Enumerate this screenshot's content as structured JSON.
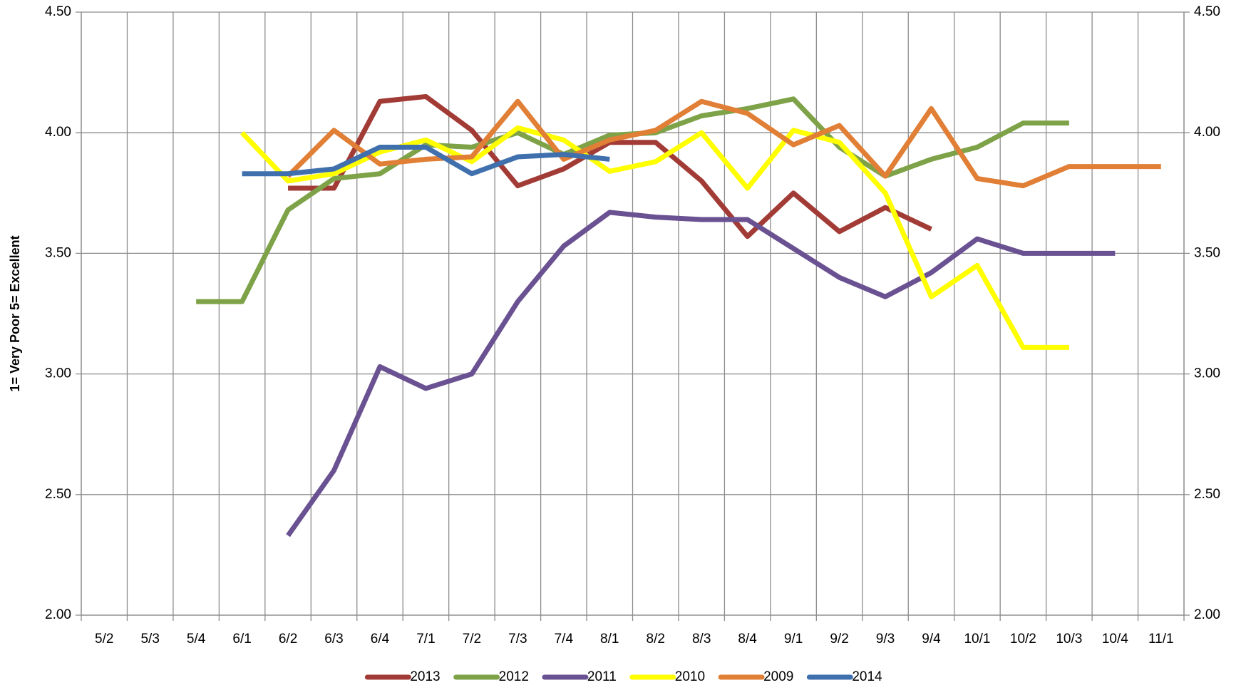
{
  "chart_data": {
    "type": "line",
    "y_label": "1= Very Poor   5= Excellent",
    "categories": [
      "5/2",
      "5/3",
      "5/4",
      "6/1",
      "6/2",
      "6/3",
      "6/4",
      "7/1",
      "7/2",
      "7/3",
      "7/4",
      "8/1",
      "8/2",
      "8/3",
      "8/4",
      "9/1",
      "9/2",
      "9/3",
      "9/4",
      "10/1",
      "10/2",
      "10/3",
      "10/4",
      "11/1"
    ],
    "series": [
      {
        "name": "2013",
        "color": "#a23b35",
        "values": [
          null,
          null,
          null,
          null,
          3.77,
          3.77,
          4.13,
          4.15,
          4.01,
          3.78,
          3.85,
          3.96,
          3.96,
          3.8,
          3.57,
          3.75,
          3.59,
          3.69,
          3.6,
          null,
          null,
          null,
          null,
          null
        ]
      },
      {
        "name": "2012",
        "color": "#7ea248",
        "values": [
          null,
          null,
          3.3,
          3.3,
          3.68,
          3.81,
          3.83,
          3.95,
          3.94,
          4.0,
          3.91,
          3.99,
          4.0,
          4.07,
          4.1,
          4.14,
          3.94,
          3.82,
          3.89,
          3.94,
          4.04,
          4.04,
          null,
          null
        ]
      },
      {
        "name": "2011",
        "color": "#6a5192",
        "values": [
          null,
          null,
          null,
          null,
          2.33,
          2.6,
          3.03,
          2.94,
          3.0,
          3.3,
          3.53,
          3.67,
          3.65,
          3.64,
          3.64,
          3.52,
          3.4,
          3.32,
          3.42,
          3.56,
          3.5,
          3.5,
          3.5,
          null
        ]
      },
      {
        "name": "2010",
        "color": "#ffff00",
        "values": [
          null,
          null,
          null,
          4.0,
          3.8,
          3.83,
          3.92,
          3.97,
          3.88,
          4.02,
          3.97,
          3.84,
          3.88,
          4.0,
          3.77,
          4.01,
          3.96,
          3.75,
          3.32,
          3.45,
          3.11,
          3.11,
          null,
          null
        ]
      },
      {
        "name": "2009",
        "color": "#e07f35",
        "values": [
          null,
          null,
          null,
          null,
          3.82,
          4.01,
          3.87,
          3.89,
          3.9,
          4.13,
          3.89,
          3.97,
          4.01,
          4.13,
          4.08,
          3.95,
          4.03,
          3.82,
          4.1,
          3.81,
          3.78,
          3.86,
          3.86,
          3.86
        ]
      },
      {
        "name": "2014",
        "color": "#3f70ad",
        "values": [
          null,
          null,
          null,
          3.83,
          3.83,
          3.85,
          3.94,
          3.94,
          3.83,
          3.9,
          3.91,
          3.89,
          null,
          null,
          null,
          null,
          null,
          null,
          null,
          null,
          null,
          null,
          null,
          null
        ]
      }
    ],
    "ylim": [
      2,
      4.5
    ],
    "yticks": [
      {
        "value": 2,
        "label": "2.00"
      },
      {
        "value": 2.5,
        "label": "2.50"
      },
      {
        "value": 3,
        "label": "3.00"
      },
      {
        "value": 3.5,
        "label": "3.50"
      },
      {
        "value": 4,
        "label": "4.00"
      },
      {
        "value": 4.5,
        "label": "4.50"
      }
    ],
    "y2lim": [
      2,
      4.5
    ],
    "y2ticks": [
      {
        "value": 2,
        "label": "2.00"
      },
      {
        "value": 2.5,
        "label": "2.50"
      },
      {
        "value": 3,
        "label": "3.00"
      },
      {
        "value": 3.5,
        "label": "3.50"
      },
      {
        "value": 4,
        "label": "4.00"
      },
      {
        "value": 4.5,
        "label": "4.50"
      }
    ],
    "grid": true,
    "legend": "bottom"
  }
}
